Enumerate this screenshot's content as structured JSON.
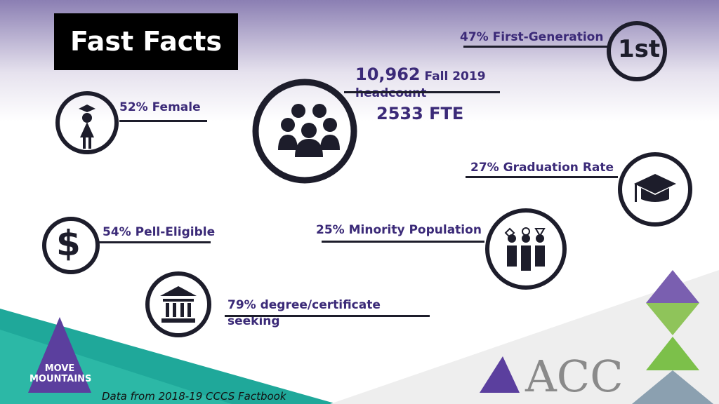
{
  "title": "Fast Facts",
  "first_generation": {
    "text": "47% First-Generation",
    "icon": "1st"
  },
  "headcount": {
    "number": "10,962",
    "label": "Fall 2019 headcount",
    "fte": "2533 FTE"
  },
  "female": {
    "text": "52% Female"
  },
  "graduation": {
    "text": "27% Graduation Rate"
  },
  "pell": {
    "text": "54% Pell-Eligible",
    "icon": "$"
  },
  "minority": {
    "text": "25% Minority Population"
  },
  "degree": {
    "text": "79% degree/certificate seeking"
  },
  "logo": {
    "text": "MOVE MOUNTAINS",
    "brand": "ACC"
  },
  "footer": {
    "source": "Data from 2018-19 CCCS Factbook"
  }
}
